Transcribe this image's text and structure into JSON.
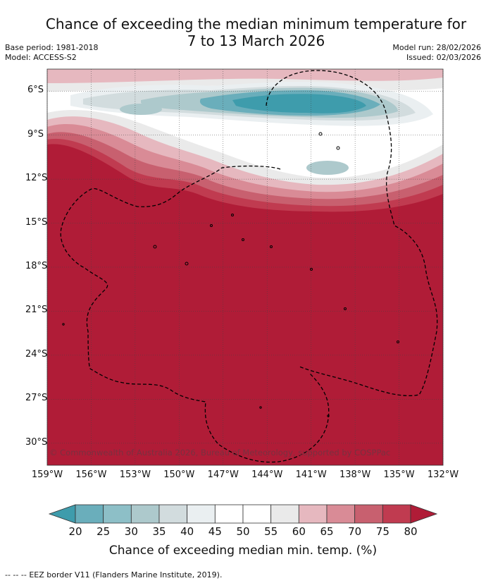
{
  "title_line1": "Chance of exceeding the median minimum temperature for",
  "title_line2": "7 to 13 March 2026",
  "base_period": "Base period: 1981-2018",
  "model": "Model: ACCESS-S2",
  "model_run": "Model run: 28/02/2026",
  "issued": "Issued: 02/03/2026",
  "map": {
    "lon_labels": [
      "159°W",
      "156°W",
      "153°W",
      "150°W",
      "147°W",
      "144°W",
      "141°W",
      "138°W",
      "135°W",
      "132°W"
    ],
    "lat_labels": [
      "6°S",
      "9°S",
      "12°S",
      "15°S",
      "18°S",
      "21°S",
      "24°S",
      "27°S",
      "30°S"
    ],
    "lon_range": [
      -159,
      -132
    ],
    "lat_range": [
      -31.5,
      -4.5
    ],
    "copyright": "© Commonwealth of Australia 2026, Bureau of Meteorology, supported by COSPPac"
  },
  "colorbar": {
    "ticks": [
      "20",
      "25",
      "30",
      "35",
      "40",
      "45",
      "50",
      "55",
      "60",
      "65",
      "70",
      "75",
      "80"
    ],
    "colors": [
      "#3e9cac",
      "#6aaebb",
      "#8dbfc7",
      "#adc9cc",
      "#d2dcde",
      "#eaeff1",
      "#ffffff",
      "#ffffff",
      "#eaeaea",
      "#e6b8bf",
      "#d98b96",
      "#c8606f",
      "#c03b50",
      "#b01c37"
    ],
    "title": "Chance of exceeding median min. temp. (%)"
  },
  "legend": {
    "line_symbol": "-- -- --",
    "text": "EEZ border V11 (Flanders Marine Institute, 2019)."
  }
}
